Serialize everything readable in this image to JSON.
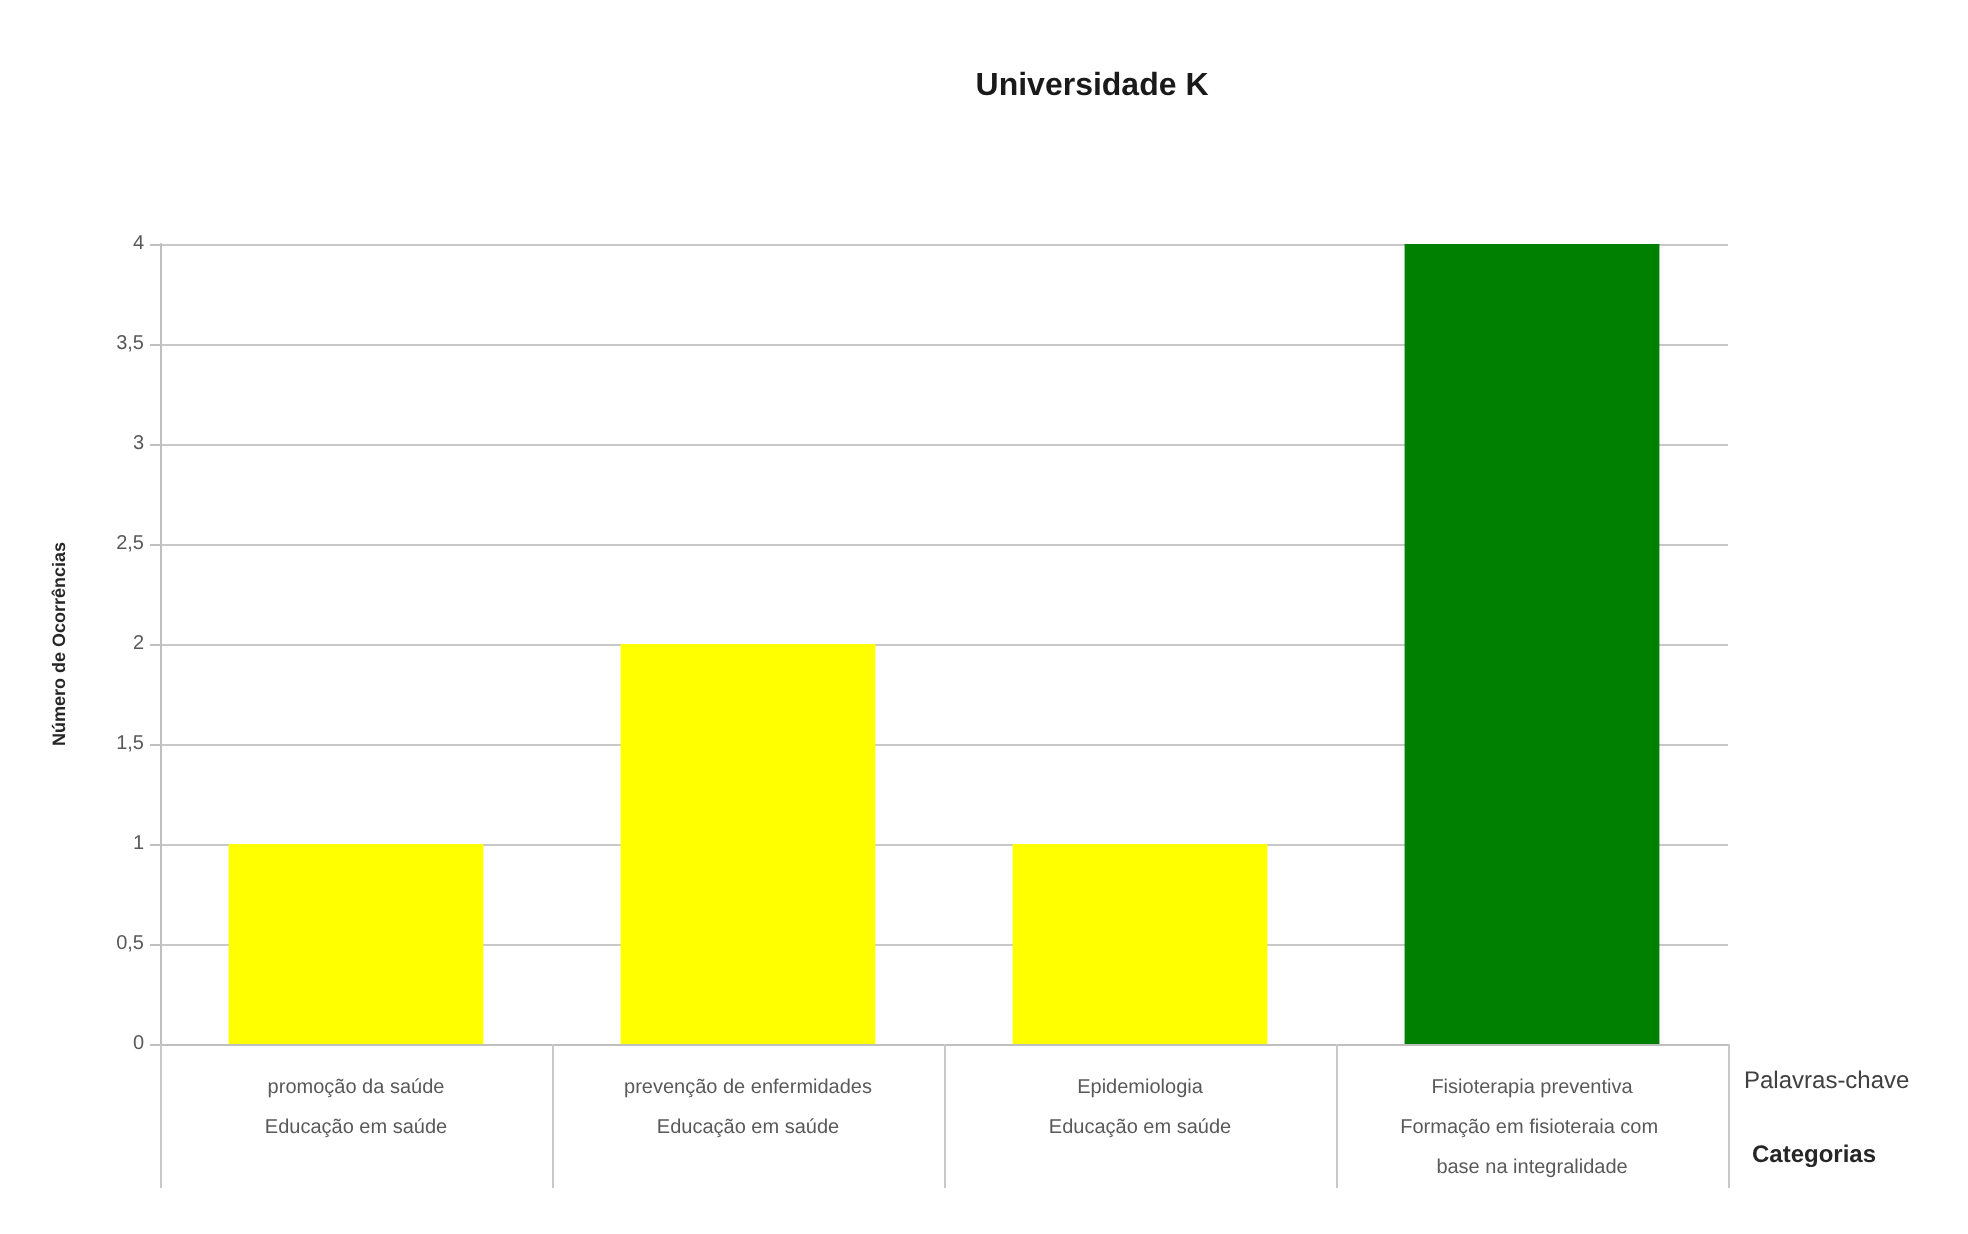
{
  "chart_data": {
    "type": "bar",
    "title": "Universidade K",
    "ylabel": "Número de Ocorrências",
    "xlabel": "Palavras-chave",
    "annotations": [
      "Categorias"
    ],
    "categories": [
      "promoção da saúde\nEducação em saúde",
      "prevenção de enfermidades\nEducação em saúde",
      "Epidemiologia\nEducação em saúde",
      "Fisioterapia preventiva\nFormação em fisioteraia com base na integralidade"
    ],
    "values": [
      1,
      2,
      1,
      4
    ],
    "colors": [
      "#ffff00",
      "#ffff00",
      "#ffff00",
      "#008000"
    ],
    "ylim": [
      0,
      4
    ],
    "yticks": [
      0,
      {
        "value": 0.5,
        "label": "0,5"
      },
      1,
      {
        "value": 1.5,
        "label": "1,5"
      },
      2,
      {
        "value": 2.5,
        "label": "2,5"
      },
      3,
      {
        "value": 3.5,
        "label": "3,5"
      },
      4
    ],
    "grid": "y"
  }
}
